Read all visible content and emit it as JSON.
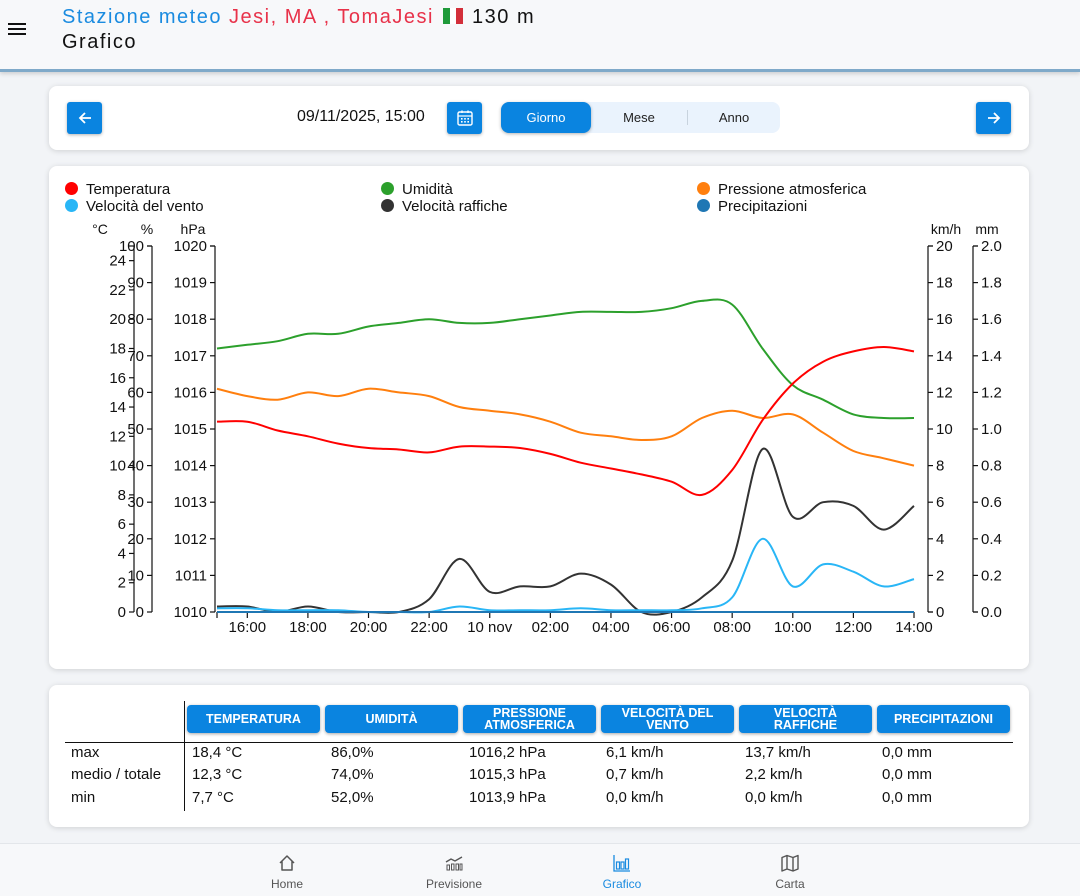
{
  "header": {
    "prefix": "Stazione meteo",
    "location": "Jesi, MA , TomaJesi",
    "flag_colors": [
      "#1f9a3a",
      "#ffffff",
      "#d32f3a"
    ],
    "altitude": "130 m",
    "subtitle": "Grafico"
  },
  "nav": {
    "date": "09/11/2025, 15:00",
    "segments": [
      {
        "label": "Giorno",
        "active": true
      },
      {
        "label": "Mese",
        "active": false
      },
      {
        "label": "Anno",
        "active": false
      }
    ]
  },
  "colors": {
    "accent": "#0a84e0",
    "temperature": "#ff0000",
    "humidity": "#2ca02c",
    "pressure": "#ff7f0e",
    "wind": "#29b6f6",
    "gusts": "#333333",
    "rain": "#1f77b4"
  },
  "chart_data": {
    "type": "line",
    "legend": [
      {
        "name": "Temperatura",
        "color": "#ff0000"
      },
      {
        "name": "Umidità",
        "color": "#2ca02c"
      },
      {
        "name": "Pressione atmosferica",
        "color": "#ff7f0e"
      },
      {
        "name": "Velocità del vento",
        "color": "#29b6f6"
      },
      {
        "name": "Velocità raffiche",
        "color": "#333333"
      },
      {
        "name": "Precipitazioni",
        "color": "#1f77b4"
      }
    ],
    "legend_position": "top",
    "x_start": "09/11/2025 15:00",
    "x_hours": [
      0,
      1,
      2,
      3,
      4,
      5,
      6,
      7,
      8,
      9,
      10,
      11,
      12,
      13,
      14,
      15,
      16,
      17,
      18,
      19,
      20,
      21,
      22,
      23
    ],
    "x_range_hours": [
      0,
      23
    ],
    "x_ticks": [
      {
        "h": 1,
        "label": "16:00"
      },
      {
        "h": 3,
        "label": "18:00"
      },
      {
        "h": 5,
        "label": "20:00"
      },
      {
        "h": 7,
        "label": "22:00"
      },
      {
        "h": 9,
        "label": "10 nov"
      },
      {
        "h": 11,
        "label": "02:00"
      },
      {
        "h": 13,
        "label": "04:00"
      },
      {
        "h": 15,
        "label": "06:00"
      },
      {
        "h": 17,
        "label": "08:00"
      },
      {
        "h": 19,
        "label": "10:00"
      },
      {
        "h": 21,
        "label": "12:00"
      },
      {
        "h": 23,
        "label": "14:00"
      }
    ],
    "axes": [
      {
        "id": "temp",
        "unit": "°C",
        "side": "left",
        "range": [
          0,
          25
        ],
        "ticks": [
          0,
          2,
          4,
          6,
          8,
          10,
          12,
          14,
          16,
          18,
          20,
          22,
          24
        ]
      },
      {
        "id": "hum",
        "unit": "%",
        "side": "left",
        "range": [
          0,
          100
        ],
        "ticks": [
          0,
          10,
          20,
          30,
          40,
          50,
          60,
          70,
          80,
          90,
          100
        ]
      },
      {
        "id": "press",
        "unit": "hPa",
        "side": "left",
        "range": [
          1010,
          1020
        ],
        "ticks": [
          1010,
          1011,
          1012,
          1013,
          1014,
          1015,
          1016,
          1017,
          1018,
          1019,
          1020
        ]
      },
      {
        "id": "wind",
        "unit": "km/h",
        "side": "right",
        "range": [
          0,
          20
        ],
        "ticks": [
          0,
          2,
          4,
          6,
          8,
          10,
          12,
          14,
          16,
          18,
          20
        ]
      },
      {
        "id": "rain",
        "unit": "mm",
        "side": "right",
        "range": [
          0,
          2
        ],
        "ticks": [
          "0.0",
          "0.2",
          "0.4",
          "0.6",
          "0.8",
          "1.0",
          "1.2",
          "1.4",
          "1.6",
          "1.8",
          "2.0"
        ]
      }
    ],
    "series": [
      {
        "name": "Umidità",
        "axis": "hum",
        "color": "#2ca02c",
        "values": [
          72,
          73,
          74,
          76,
          76,
          78,
          79,
          80,
          79,
          79,
          80,
          81,
          82,
          82,
          82,
          83,
          85,
          84,
          72,
          62,
          58,
          54,
          53,
          53
        ]
      },
      {
        "name": "Pressione atmosferica",
        "axis": "press",
        "color": "#ff7f0e",
        "values": [
          1016.1,
          1015.9,
          1015.8,
          1016.0,
          1015.9,
          1016.1,
          1016.0,
          1015.9,
          1015.6,
          1015.5,
          1015.4,
          1015.2,
          1014.9,
          1014.8,
          1014.7,
          1014.8,
          1015.3,
          1015.5,
          1015.3,
          1015.4,
          1014.9,
          1014.4,
          1014.2,
          1014.0
        ]
      },
      {
        "name": "Temperatura",
        "axis": "temp",
        "color": "#ff0000",
        "values": [
          13.0,
          13.0,
          12.4,
          12.0,
          11.5,
          11.2,
          11.1,
          10.9,
          11.3,
          11.3,
          11.2,
          10.8,
          10.2,
          9.8,
          9.4,
          8.9,
          8.0,
          9.7,
          13.1,
          15.6,
          17.1,
          17.8,
          18.1,
          17.8
        ]
      },
      {
        "name": "Velocità raffiche",
        "axis": "wind",
        "color": "#333333",
        "values": [
          0.3,
          0.3,
          0.0,
          0.3,
          0.0,
          0.0,
          0.0,
          0.7,
          2.9,
          1.1,
          1.4,
          1.4,
          2.1,
          1.5,
          0.0,
          0.0,
          0.8,
          2.8,
          8.9,
          5.2,
          6.0,
          5.8,
          4.5,
          5.8
        ]
      },
      {
        "name": "Velocità del vento",
        "axis": "wind",
        "color": "#29b6f6",
        "values": [
          0.2,
          0.2,
          0.1,
          0.1,
          0.1,
          0.0,
          0.0,
          0.0,
          0.3,
          0.1,
          0.1,
          0.1,
          0.2,
          0.1,
          0.1,
          0.1,
          0.2,
          0.8,
          4.0,
          1.4,
          2.6,
          2.2,
          1.4,
          1.8
        ]
      },
      {
        "name": "Precipitazioni",
        "axis": "rain",
        "color": "#1f77b4",
        "values": [
          0,
          0,
          0,
          0,
          0,
          0,
          0,
          0,
          0,
          0,
          0,
          0,
          0,
          0,
          0,
          0,
          0,
          0,
          0,
          0,
          0,
          0,
          0,
          0
        ]
      }
    ]
  },
  "summary": {
    "columns": [
      "TEMPERATURA",
      "UMIDITÀ",
      "PRESSIONE ATMOSFERICA",
      "VELOCITÀ DEL VENTO",
      "VELOCITÀ RAFFICHE",
      "PRECIPITAZIONI"
    ],
    "rows": [
      {
        "label": "max",
        "values": [
          "18,4 °C",
          "86,0%",
          "1016,2 hPa",
          "6,1 km/h",
          "13,7 km/h",
          "0,0 mm"
        ]
      },
      {
        "label": "medio / totale",
        "values": [
          "12,3 °C",
          "74,0%",
          "1015,3 hPa",
          "0,7 km/h",
          "2,2 km/h",
          "0,0 mm"
        ]
      },
      {
        "label": "min",
        "values": [
          "7,7 °C",
          "52,0%",
          "1013,9 hPa",
          "0,0 km/h",
          "0,0 km/h",
          "0,0 mm"
        ]
      }
    ]
  },
  "bottom_nav": [
    {
      "label": "Home",
      "icon": "home-icon",
      "active": false
    },
    {
      "label": "Previsione",
      "icon": "forecast-icon",
      "active": false
    },
    {
      "label": "Grafico",
      "icon": "bar-chart-icon",
      "active": true
    },
    {
      "label": "Carta",
      "icon": "map-icon",
      "active": false
    }
  ]
}
